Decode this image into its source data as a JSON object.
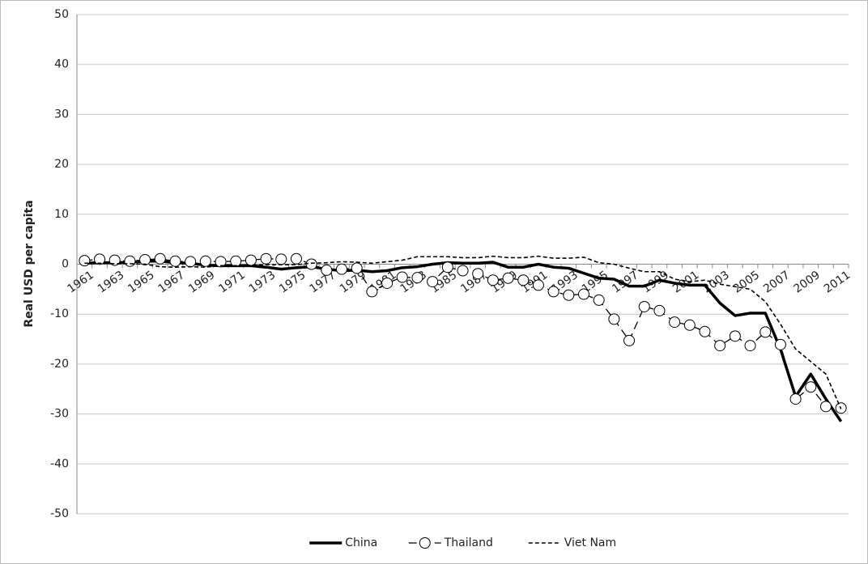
{
  "chart_data": {
    "type": "line",
    "y_label": "Real USD per capita",
    "categories": [
      "1961",
      null,
      "1963",
      null,
      "1965",
      null,
      "1967",
      null,
      "1969",
      null,
      "1971",
      null,
      "1973",
      null,
      "1975",
      null,
      "1977",
      null,
      "1979",
      null,
      "1981",
      null,
      "1983",
      null,
      "1985",
      null,
      "1987",
      null,
      "1989",
      null,
      "1991",
      null,
      "1993",
      null,
      "1995",
      null,
      "1997",
      null,
      "1999",
      null,
      "2001",
      null,
      "2003",
      null,
      "2005",
      null,
      "2007",
      null,
      "2009",
      null,
      "2011"
    ],
    "series": [
      {
        "name": "China",
        "color": "#000000",
        "line_style": "solid",
        "width": 3.5,
        "values": [
          0.2,
          0.3,
          0.3,
          0.4,
          0.6,
          0.6,
          0.3,
          0.2,
          -0.2,
          -0.3,
          -0.3,
          -0.3,
          -0.6,
          -1.0,
          -0.7,
          -0.5,
          -1.0,
          -1.3,
          -1.2,
          -1.5,
          -1.3,
          -0.7,
          -0.5,
          0,
          0.3,
          0.2,
          0.2,
          0.4,
          -0.6,
          -0.6,
          0,
          -0.6,
          -0.8,
          -1.8,
          -2.8,
          -3.0,
          -4.4,
          -4.4,
          -3.2,
          -3.8,
          -4.2,
          -4.2,
          -7.8,
          -10.3,
          -9.8,
          -9.8,
          -17,
          -26.5,
          -22,
          -27,
          -31.5
        ]
      },
      {
        "name": "Thailand",
        "color": "#000000",
        "line_style": "dashed",
        "marker": "circle",
        "width": 1.3,
        "values": [
          0.7,
          1.0,
          0.8,
          0.6,
          0.9,
          1.1,
          0.6,
          0.5,
          0.6,
          0.5,
          0.6,
          0.8,
          1.1,
          1.0,
          1.1,
          0.0,
          -1.2,
          -1.0,
          -0.8,
          -5.5,
          -3.8,
          -2.6,
          -2.7,
          -3.5,
          -0.6,
          -1.3,
          -1.9,
          -3.2,
          -2.8,
          -3.2,
          -4.2,
          -5.5,
          -6.2,
          -6.0,
          -7.2,
          -11,
          -15.3,
          -8.5,
          -9.3,
          -11.6,
          -12.2,
          -13.5,
          -16.3,
          -14.4,
          -16.3,
          -13.6,
          -16.1,
          -27,
          -24.6,
          -28.5,
          -28.8
        ]
      },
      {
        "name": "Viet Nam",
        "color": "#000000",
        "line_style": "dotted",
        "width": 1.6,
        "values": [
          0.2,
          0.2,
          0.1,
          0.1,
          0.0,
          -0.5,
          -0.6,
          -0.5,
          -0.6,
          -0.3,
          -0.3,
          -0.2,
          -0.1,
          -0.1,
          -0.1,
          0.2,
          0.3,
          0.5,
          0.4,
          0.2,
          0.5,
          0.8,
          1.5,
          1.5,
          1.5,
          1.3,
          1.3,
          1.6,
          1.3,
          1.3,
          1.6,
          1.2,
          1.2,
          1.4,
          0.3,
          0,
          -0.8,
          -1.5,
          -1.5,
          -3,
          -3.5,
          -3.2,
          -4,
          -4.5,
          -5,
          -7.5,
          -12,
          -17,
          -19.5,
          -22,
          -29
        ]
      }
    ],
    "ylim": [
      -50,
      50
    ],
    "yticks": [
      -50,
      -40,
      -30,
      -20,
      -10,
      0,
      10,
      20,
      30,
      40,
      50
    ],
    "grid": true,
    "legend": "bottom"
  }
}
